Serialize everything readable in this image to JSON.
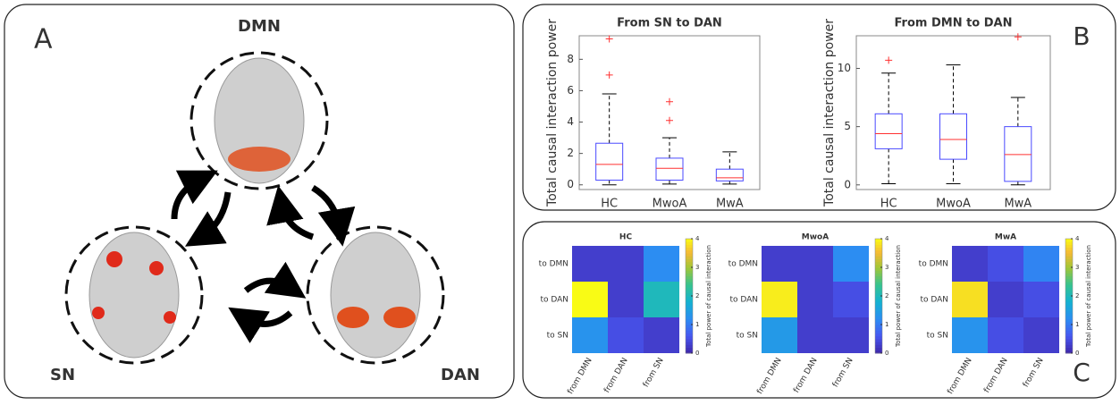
{
  "diagram": {
    "label": "A",
    "nodes": [
      "DMN",
      "SN",
      "DAN"
    ]
  },
  "panel_labels": [
    "B",
    "C"
  ],
  "chart_data": [
    {
      "type": "box",
      "title": "From SN to DAN",
      "y_label": "Total causal interaction power",
      "categories": [
        "HC",
        "MwoA",
        "MwA"
      ],
      "boxes": [
        {
          "min": 0,
          "q1": 0.3,
          "median": 1.3,
          "q3": 2.65,
          "max": 5.8,
          "outliers": [
            7.0,
            9.3
          ]
        },
        {
          "min": 0.05,
          "q1": 0.3,
          "median": 1.05,
          "q3": 1.7,
          "max": 3.0,
          "outliers": [
            4.1,
            5.3
          ]
        },
        {
          "min": 0.05,
          "q1": 0.25,
          "median": 0.45,
          "q3": 1.0,
          "max": 2.1,
          "outliers": []
        }
      ],
      "box_color": "#4a4aff",
      "median_color": "#ff3030",
      "outlier_color": "#ff3030",
      "ylim": [
        -0.3,
        9.5
      ],
      "yticks": [
        0,
        2,
        4,
        6,
        8
      ]
    },
    {
      "type": "box",
      "title": "From DMN to DAN",
      "y_label": "Total causal interaction power",
      "categories": [
        "HC",
        "MwoA",
        "MwA"
      ],
      "boxes": [
        {
          "min": 0.1,
          "q1": 3.1,
          "median": 4.4,
          "q3": 6.1,
          "max": 9.6,
          "outliers": [
            10.7
          ]
        },
        {
          "min": 0.1,
          "q1": 2.2,
          "median": 3.9,
          "q3": 6.1,
          "max": 10.3,
          "outliers": []
        },
        {
          "min": 0,
          "q1": 0.3,
          "median": 2.6,
          "q3": 5.0,
          "max": 7.5,
          "outliers": [
            12.7
          ]
        }
      ],
      "box_color": "#4a4aff",
      "median_color": "#ff3030",
      "outlier_color": "#ff3030",
      "ylim": [
        -0.4,
        12.8
      ],
      "yticks": [
        0,
        5,
        10
      ]
    },
    {
      "type": "heatmap",
      "title": "HC",
      "row_labels": [
        "to DMN",
        "to DAN",
        "to SN"
      ],
      "col_labels": [
        "from DMN",
        "from DAN",
        "from SN"
      ],
      "values": [
        [
          0.3,
          0.3,
          1.2
        ],
        [
          4.0,
          0.3,
          2.0
        ],
        [
          1.3,
          0.5,
          0.3
        ]
      ],
      "colormap": "parula",
      "colorbar_label": "Total power of causal interaction",
      "clim": [
        0,
        4
      ],
      "cticks": [
        0,
        1,
        2,
        3,
        4
      ]
    },
    {
      "type": "heatmap",
      "title": "MwoA",
      "row_labels": [
        "to DMN",
        "to DAN",
        "to SN"
      ],
      "col_labels": [
        "from DMN",
        "from DAN",
        "from SN"
      ],
      "values": [
        [
          0.3,
          0.3,
          1.2
        ],
        [
          3.9,
          0.3,
          0.5
        ],
        [
          1.4,
          0.3,
          0.3
        ]
      ],
      "colormap": "parula",
      "colorbar_label": "Total power of causal interaction",
      "clim": [
        0,
        4
      ],
      "cticks": [
        0,
        1,
        2,
        3,
        4
      ]
    },
    {
      "type": "heatmap",
      "title": "MwA",
      "row_labels": [
        "to DMN",
        "to DAN",
        "to SN"
      ],
      "col_labels": [
        "from DMN",
        "from DAN",
        "from SN"
      ],
      "values": [
        [
          0.3,
          0.5,
          1.1
        ],
        [
          3.8,
          0.3,
          0.5
        ],
        [
          1.3,
          0.5,
          0.3
        ]
      ],
      "colormap": "parula",
      "colorbar_label": "Total power of causal interaction",
      "clim": [
        0,
        4
      ],
      "cticks": [
        0,
        1,
        2,
        3,
        4
      ]
    }
  ]
}
